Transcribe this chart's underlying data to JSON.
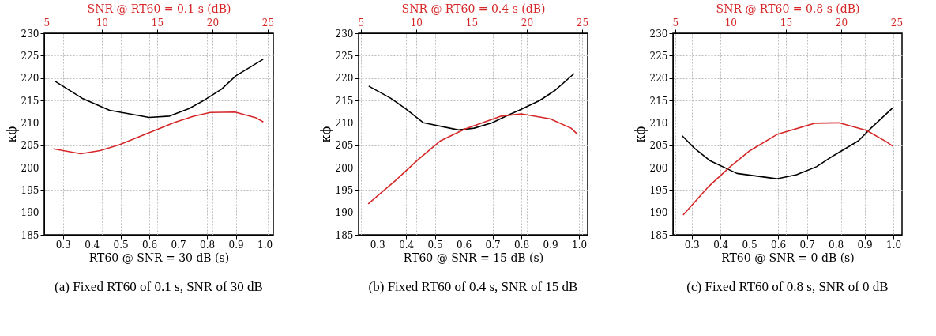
{
  "chart_data": [
    {
      "type": "line",
      "xlabel": "RT60 @ SNR = 30 dB (s)",
      "x2label": "SNR @ RT60 = 0.1 s (dB)",
      "ylabel": "κϕ",
      "xlim": [
        0.235,
        1.03
      ],
      "xticks": [
        {
          "value": 0.3,
          "label": "0.3"
        },
        {
          "value": 0.4,
          "label": "0.4"
        },
        {
          "value": 0.5,
          "label": "0.5"
        },
        {
          "value": 0.6,
          "label": "0.6"
        },
        {
          "value": 0.7,
          "label": "0.7"
        },
        {
          "value": 0.8,
          "label": "0.8"
        },
        {
          "value": 0.9,
          "label": "0.9"
        },
        {
          "value": 1.0,
          "label": "1.0"
        }
      ],
      "x2lim": [
        4.8,
        25.5
      ],
      "x2ticks": [
        5,
        10,
        15,
        20,
        25
      ],
      "ylim": [
        185,
        230
      ],
      "yticks": [
        185,
        190,
        195,
        200,
        205,
        210,
        215,
        220,
        225,
        230
      ],
      "grid": true,
      "annotations": [
        "(a) Fixed RT60 of 0.1 s, SNR of 30 dB"
      ],
      "series": [
        {
          "color": "#000000",
          "x": [
            0.27,
            0.366,
            0.462,
            0.599,
            0.67,
            0.738,
            0.786,
            0.85,
            0.9,
            0.995
          ],
          "values": [
            219.4,
            215.5,
            212.8,
            211.2,
            211.5,
            213.2,
            214.9,
            217.5,
            220.5,
            224.2
          ]
        },
        {
          "color": "#d62728",
          "axis": "x2",
          "x": [
            5.63,
            8.1,
            9.85,
            11.6,
            14.3,
            16.6,
            18.35,
            19.8,
            22.05,
            23.95,
            24.6
          ],
          "values": [
            204.2,
            203.1,
            203.8,
            205.1,
            207.8,
            210.1,
            211.5,
            212.3,
            212.4,
            211.1,
            210.2
          ]
        }
      ]
    },
    {
      "type": "line",
      "xlabel": "RT60 @ SNR = 15 dB (s)",
      "x2label": "SNR @ RT60 = 0.4 s (dB)",
      "ylabel": "κϕ",
      "xlim": [
        0.235,
        1.03
      ],
      "xticks": [
        {
          "value": 0.3,
          "label": "0.3"
        },
        {
          "value": 0.4,
          "label": "0.4"
        },
        {
          "value": 0.5,
          "label": "0.5"
        },
        {
          "value": 0.6,
          "label": "0.6"
        },
        {
          "value": 0.7,
          "label": "0.7"
        },
        {
          "value": 0.8,
          "label": "0.8"
        },
        {
          "value": 0.9,
          "label": "0.9"
        },
        {
          "value": 1.0,
          "label": "1.0"
        }
      ],
      "x2lim": [
        4.8,
        25.5
      ],
      "x2ticks": [
        5,
        10,
        15,
        20,
        25
      ],
      "ylim": [
        185,
        230
      ],
      "yticks": [
        185,
        190,
        195,
        200,
        205,
        210,
        215,
        220,
        225,
        230
      ],
      "grid": true,
      "annotations": [
        "(b) Fixed RT60 of 0.4 s, SNR of 15 dB"
      ],
      "series": [
        {
          "color": "#000000",
          "x": [
            0.27,
            0.346,
            0.397,
            0.46,
            0.582,
            0.636,
            0.699,
            0.75,
            0.792,
            0.864,
            0.918,
            0.983
          ],
          "values": [
            218.2,
            215.5,
            213.2,
            210.0,
            208.4,
            208.8,
            210.0,
            211.6,
            212.8,
            215.0,
            217.3,
            221.0
          ]
        },
        {
          "color": "#d62728",
          "axis": "x2",
          "x": [
            5.67,
            8.13,
            10.14,
            12.15,
            14.4,
            16.2,
            17.7,
            19.5,
            22.1,
            24.0,
            24.6
          ],
          "values": [
            191.9,
            197.1,
            201.7,
            205.9,
            208.6,
            210.2,
            211.5,
            212.0,
            210.9,
            208.8,
            207.4
          ]
        }
      ]
    },
    {
      "type": "line",
      "xlabel": "RT60 @ SNR = 0 dB (s)",
      "x2label": "SNR @ RT60 = 0.8 s (dB)",
      "ylabel": "κϕ",
      "xlim": [
        0.235,
        1.03
      ],
      "xticks": [
        {
          "value": 0.3,
          "label": "0.3"
        },
        {
          "value": 0.4,
          "label": "0.4"
        },
        {
          "value": 0.5,
          "label": "0.5"
        },
        {
          "value": 0.6,
          "label": "0.6"
        },
        {
          "value": 0.7,
          "label": "0.7"
        },
        {
          "value": 0.8,
          "label": "0.8"
        },
        {
          "value": 0.9,
          "label": "0.9"
        },
        {
          "value": 1.0,
          "label": "1.0"
        }
      ],
      "x2lim": [
        4.8,
        25.5
      ],
      "x2ticks": [
        5,
        10,
        15,
        20,
        25
      ],
      "ylim": [
        185,
        230
      ],
      "yticks": [
        185,
        190,
        195,
        200,
        205,
        210,
        215,
        220,
        225,
        230
      ],
      "grid": true,
      "annotations": [
        "(c) Fixed RT60 of 0.8 s, SNR of 0 dB"
      ],
      "series": [
        {
          "color": "#000000",
          "x": [
            0.267,
            0.31,
            0.362,
            0.457,
            0.595,
            0.664,
            0.733,
            0.793,
            0.879,
            0.922,
            0.997
          ],
          "values": [
            207.1,
            204.3,
            201.6,
            198.7,
            197.5,
            198.4,
            200.2,
            202.7,
            206.0,
            208.8,
            213.3
          ]
        },
        {
          "color": "#d62728",
          "axis": "x2",
          "x": [
            5.72,
            7.95,
            9.97,
            11.76,
            14.2,
            17.6,
            19.8,
            22.3,
            24.06,
            24.66
          ],
          "values": [
            189.4,
            195.6,
            200.2,
            203.8,
            207.4,
            209.9,
            210.0,
            208.3,
            205.8,
            204.8
          ]
        }
      ]
    }
  ]
}
